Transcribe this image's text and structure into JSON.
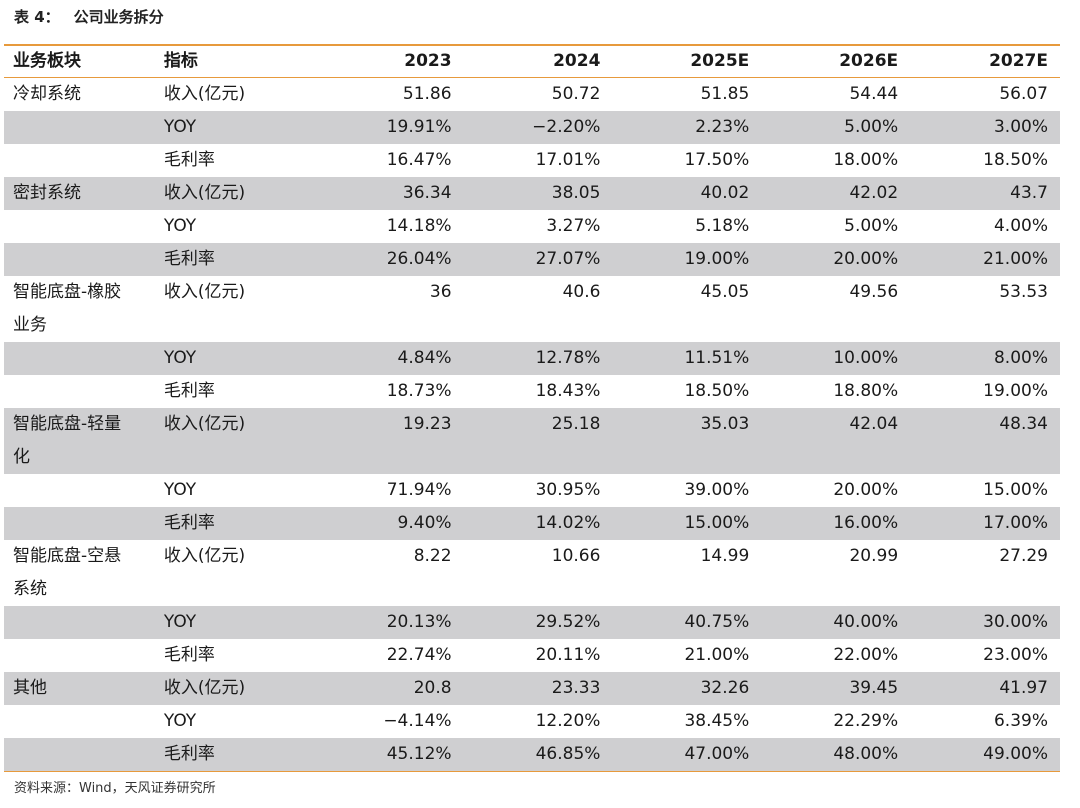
{
  "caption": {
    "label": "表 4：",
    "title": "公司业务拆分"
  },
  "table": {
    "headers": [
      "业务板块",
      "指标",
      "2023",
      "2024",
      "2025E",
      "2026E",
      "2027E"
    ],
    "segments": [
      {
        "name_lines": [
          "冷却系统"
        ],
        "rows": [
          {
            "indicator": "收入(亿元)",
            "values": [
              "51.86",
              "50.72",
              "51.85",
              "54.44",
              "56.07"
            ]
          },
          {
            "indicator": "YOY",
            "values": [
              "19.91%",
              "−2.20%",
              "2.23%",
              "5.00%",
              "3.00%"
            ]
          },
          {
            "indicator": "毛利率",
            "values": [
              "16.47%",
              "17.01%",
              "17.50%",
              "18.00%",
              "18.50%"
            ]
          }
        ]
      },
      {
        "name_lines": [
          "密封系统"
        ],
        "rows": [
          {
            "indicator": "收入(亿元)",
            "values": [
              "36.34",
              "38.05",
              "40.02",
              "42.02",
              "43.7"
            ]
          },
          {
            "indicator": "YOY",
            "values": [
              "14.18%",
              "3.27%",
              "5.18%",
              "5.00%",
              "4.00%"
            ]
          },
          {
            "indicator": "毛利率",
            "values": [
              "26.04%",
              "27.07%",
              "19.00%",
              "20.00%",
              "21.00%"
            ]
          }
        ]
      },
      {
        "name_lines": [
          "智能底盘-橡胶",
          "业务"
        ],
        "rows": [
          {
            "indicator": "收入(亿元)",
            "values": [
              "36",
              "40.6",
              "45.05",
              "49.56",
              "53.53"
            ]
          },
          {
            "indicator": "YOY",
            "values": [
              "4.84%",
              "12.78%",
              "11.51%",
              "10.00%",
              "8.00%"
            ]
          },
          {
            "indicator": "毛利率",
            "values": [
              "18.73%",
              "18.43%",
              "18.50%",
              "18.80%",
              "19.00%"
            ]
          }
        ]
      },
      {
        "name_lines": [
          "智能底盘-轻量",
          "化"
        ],
        "rows": [
          {
            "indicator": "收入(亿元)",
            "values": [
              "19.23",
              "25.18",
              "35.03",
              "42.04",
              "48.34"
            ]
          },
          {
            "indicator": "YOY",
            "values": [
              "71.94%",
              "30.95%",
              "39.00%",
              "20.00%",
              "15.00%"
            ]
          },
          {
            "indicator": "毛利率",
            "values": [
              "9.40%",
              "14.02%",
              "15.00%",
              "16.00%",
              "17.00%"
            ]
          }
        ]
      },
      {
        "name_lines": [
          "智能底盘-空悬",
          "系统"
        ],
        "rows": [
          {
            "indicator": "收入(亿元)",
            "values": [
              "8.22",
              "10.66",
              "14.99",
              "20.99",
              "27.29"
            ]
          },
          {
            "indicator": "YOY",
            "values": [
              "20.13%",
              "29.52%",
              "40.75%",
              "40.00%",
              "30.00%"
            ]
          },
          {
            "indicator": "毛利率",
            "values": [
              "22.74%",
              "20.11%",
              "21.00%",
              "22.00%",
              "23.00%"
            ]
          }
        ]
      },
      {
        "name_lines": [
          "其他"
        ],
        "rows": [
          {
            "indicator": "收入(亿元)",
            "values": [
              "20.8",
              "23.33",
              "32.26",
              "39.45",
              "41.97"
            ]
          },
          {
            "indicator": "YOY",
            "values": [
              "−4.14%",
              "12.20%",
              "38.45%",
              "22.29%",
              "6.39%"
            ]
          },
          {
            "indicator": "毛利率",
            "values": [
              "45.12%",
              "46.85%",
              "47.00%",
              "48.00%",
              "49.00%"
            ]
          }
        ]
      }
    ]
  },
  "source": "资料来源：Wind，天风证券研究所",
  "colors": {
    "rule": "#e79a3c",
    "stripe": "#cfcfd1"
  }
}
